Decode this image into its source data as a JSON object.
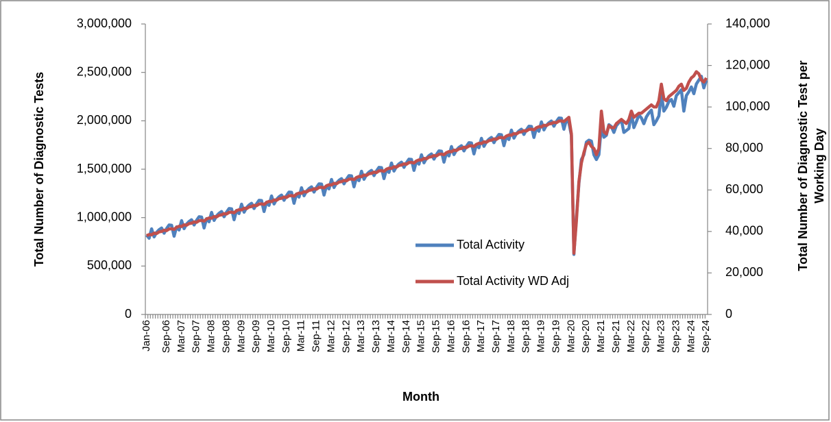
{
  "chart_data": {
    "type": "line",
    "x_label": "Month",
    "y_label": "Total Number of Diagnostic Tests",
    "y2_label": [
      "Total Number of Diagnostic Test per",
      "Working Day"
    ],
    "categories": [
      "Jan-06",
      null,
      null,
      null,
      null,
      null,
      null,
      null,
      "Sep-06",
      null,
      null,
      null,
      null,
      null,
      "Mar-07",
      null,
      null,
      null,
      null,
      null,
      "Sep-07",
      null,
      null,
      null,
      null,
      null,
      "Mar-08",
      null,
      null,
      null,
      null,
      null,
      "Sep-08",
      null,
      null,
      null,
      null,
      null,
      "Mar-09",
      null,
      null,
      null,
      null,
      null,
      "Sep-09",
      null,
      null,
      null,
      null,
      null,
      "Mar-10",
      null,
      null,
      null,
      null,
      null,
      "Sep-10",
      null,
      null,
      null,
      null,
      null,
      "Mar-11",
      null,
      null,
      null,
      null,
      null,
      "Sep-11",
      null,
      null,
      null,
      null,
      null,
      "Mar-12",
      null,
      null,
      null,
      null,
      null,
      "Sep-12",
      null,
      null,
      null,
      null,
      null,
      "Mar-13",
      null,
      null,
      null,
      null,
      null,
      "Sep-13",
      null,
      null,
      null,
      null,
      null,
      "Mar-14",
      null,
      null,
      null,
      null,
      null,
      "Sep-14",
      null,
      null,
      null,
      null,
      null,
      "Mar-15",
      null,
      null,
      null,
      null,
      null,
      "Sep-15",
      null,
      null,
      null,
      null,
      null,
      "Mar-16",
      null,
      null,
      null,
      null,
      null,
      "Sep-16",
      null,
      null,
      null,
      null,
      null,
      "Mar-17",
      null,
      null,
      null,
      null,
      null,
      "Sep-17",
      null,
      null,
      null,
      null,
      null,
      "Mar-18",
      null,
      null,
      null,
      null,
      null,
      "Sep-18",
      null,
      null,
      null,
      null,
      null,
      "Mar-19",
      null,
      null,
      null,
      null,
      null,
      "Sep-19",
      null,
      null,
      null,
      null,
      null,
      "Mar-20",
      null,
      null,
      null,
      null,
      null,
      "Sep-20",
      null,
      null,
      null,
      null,
      null,
      "Mar-21",
      null,
      null,
      null,
      null,
      null,
      "Sep-21",
      null,
      null,
      null,
      null,
      null,
      "Mar-22",
      null,
      null,
      null,
      null,
      null,
      "Sep-22",
      null,
      null,
      null,
      null,
      null,
      "Mar-23",
      null,
      null,
      null,
      null,
      null,
      "Sep-23",
      null,
      null,
      null,
      null,
      null,
      "Mar-24",
      null,
      null,
      null,
      null,
      null,
      "Sep-24"
    ],
    "series": [
      {
        "name": "Total Activity",
        "color": "#4f81bd",
        "values": [
          820000,
          787000,
          884000,
          801000,
          848000,
          875000,
          893000,
          839000,
          887000,
          924000,
          921000,
          808000,
          905000,
          872000,
          969000,
          886000,
          933000,
          960000,
          978000,
          924000,
          972000,
          1009000,
          1006000,
          893000,
          990000,
          957000,
          1054000,
          971000,
          1018000,
          1045000,
          1063000,
          1009000,
          1057000,
          1094000,
          1091000,
          978000,
          1075000,
          1042000,
          1139000,
          1056000,
          1103000,
          1130000,
          1148000,
          1094000,
          1142000,
          1179000,
          1176000,
          1063000,
          1160000,
          1127000,
          1224000,
          1141000,
          1188000,
          1215000,
          1233000,
          1179000,
          1227000,
          1264000,
          1261000,
          1148000,
          1245000,
          1212000,
          1309000,
          1226000,
          1273000,
          1300000,
          1318000,
          1264000,
          1312000,
          1349000,
          1346000,
          1233000,
          1330000,
          1297000,
          1394000,
          1311000,
          1358000,
          1385000,
          1403000,
          1349000,
          1397000,
          1434000,
          1431000,
          1318000,
          1415000,
          1382000,
          1479000,
          1396000,
          1443000,
          1470000,
          1488000,
          1434000,
          1482000,
          1519000,
          1516000,
          1403000,
          1500000,
          1467000,
          1564000,
          1481000,
          1528000,
          1555000,
          1573000,
          1519000,
          1567000,
          1604000,
          1601000,
          1488000,
          1585000,
          1552000,
          1649000,
          1566000,
          1613000,
          1640000,
          1658000,
          1604000,
          1652000,
          1689000,
          1686000,
          1573000,
          1670000,
          1637000,
          1734000,
          1651000,
          1698000,
          1725000,
          1743000,
          1689000,
          1737000,
          1774000,
          1771000,
          1658000,
          1755000,
          1722000,
          1819000,
          1736000,
          1783000,
          1810000,
          1828000,
          1774000,
          1822000,
          1859000,
          1856000,
          1743000,
          1840000,
          1807000,
          1904000,
          1821000,
          1868000,
          1895000,
          1913000,
          1859000,
          1907000,
          1944000,
          1941000,
          1828000,
          1925000,
          1892000,
          1989000,
          1906000,
          1953000,
          1980000,
          1998000,
          1944000,
          1992000,
          2029000,
          2026000,
          1913000,
          2010000,
          1980000,
          1850000,
          620000,
          1000000,
          1350000,
          1600000,
          1650000,
          1780000,
          1800000,
          1790000,
          1650000,
          1600000,
          1650000,
          1950000,
          1830000,
          1850000,
          1960000,
          1940000,
          1880000,
          1950000,
          1980000,
          2010000,
          1880000,
          1900000,
          1920000,
          2080000,
          1930000,
          1990000,
          2060000,
          2030000,
          1970000,
          2040000,
          2080000,
          2110000,
          1960000,
          2000000,
          2050000,
          2280000,
          2100000,
          2140000,
          2200000,
          2220000,
          2150000,
          2260000,
          2290000,
          2320000,
          2100000,
          2260000,
          2300000,
          2350000,
          2280000,
          2380000,
          2420000,
          2460000,
          2340000,
          2420000
        ]
      },
      {
        "name": "Total Activity WD Adj",
        "color": "#c0504d",
        "axis": "y2",
        "values": [
          38000,
          38500,
          38400,
          39200,
          39000,
          39800,
          40000,
          40600,
          40400,
          41200,
          41300,
          41000,
          42000,
          42500,
          42400,
          43200,
          43000,
          43800,
          44000,
          44600,
          44400,
          45200,
          45300,
          45000,
          46000,
          46500,
          46400,
          47200,
          47000,
          47800,
          48000,
          48600,
          48400,
          49200,
          49300,
          49000,
          50000,
          50500,
          50400,
          51200,
          51000,
          51800,
          52000,
          52600,
          52400,
          53200,
          53300,
          53000,
          54000,
          54500,
          54400,
          55200,
          55000,
          55800,
          56000,
          56600,
          56400,
          57200,
          57300,
          57000,
          58000,
          58500,
          58400,
          59200,
          59000,
          59800,
          60000,
          60600,
          60400,
          61200,
          61300,
          61000,
          62000,
          62500,
          62400,
          63200,
          63000,
          63800,
          64000,
          64600,
          64400,
          65200,
          65300,
          65000,
          66000,
          66500,
          66400,
          67200,
          67000,
          67800,
          68000,
          68600,
          68400,
          69200,
          69300,
          69000,
          70000,
          70500,
          70400,
          71200,
          71000,
          71800,
          72000,
          72600,
          72400,
          73200,
          73300,
          73000,
          74000,
          74500,
          74400,
          75200,
          75000,
          75800,
          76000,
          76600,
          76400,
          77200,
          77300,
          77000,
          78000,
          78500,
          78400,
          79200,
          79000,
          79800,
          80000,
          80600,
          80400,
          81200,
          81300,
          81000,
          82000,
          82500,
          82400,
          83200,
          83000,
          83800,
          84000,
          84600,
          84400,
          85200,
          85300,
          85000,
          86000,
          86500,
          86400,
          87200,
          87000,
          87800,
          88000,
          88600,
          88400,
          89200,
          89300,
          89000,
          90000,
          90500,
          90400,
          91200,
          91000,
          91800,
          92000,
          92600,
          92400,
          93200,
          93300,
          93000,
          94000,
          95000,
          87000,
          29500,
          45000,
          64000,
          73000,
          78000,
          82000,
          83000,
          81000,
          80000,
          77000,
          80000,
          98000,
          88000,
          87000,
          91000,
          90000,
          90000,
          92000,
          93000,
          94000,
          93000,
          92000,
          94000,
          98000,
          95000,
          96000,
          97000,
          97000,
          98000,
          99000,
          100000,
          101000,
          100000,
          100000,
          103000,
          111000,
          104000,
          103000,
          105000,
          106000,
          107000,
          108000,
          110000,
          111000,
          108000,
          109000,
          112000,
          114000,
          115000,
          117000,
          116000,
          113000,
          112000,
          114000
        ]
      }
    ],
    "ylim": [
      0,
      3000000
    ],
    "yticks": [
      0,
      {
        "value": 500000,
        "label": "500,000"
      },
      {
        "value": 1000000,
        "label": "1,000,000"
      },
      {
        "value": 1500000,
        "label": "1,500,000"
      },
      {
        "value": 2000000,
        "label": "2,000,000"
      },
      {
        "value": 2500000,
        "label": "2,500,000"
      },
      {
        "value": 3000000,
        "label": "3,000,000"
      }
    ],
    "y2lim": [
      0,
      140000
    ],
    "y2ticks": [
      0,
      {
        "value": 20000,
        "label": "20,000"
      },
      {
        "value": 40000,
        "label": "40,000"
      },
      {
        "value": 60000,
        "label": "60,000"
      },
      {
        "value": 80000,
        "label": "80,000"
      },
      {
        "value": 100000,
        "label": "100,000"
      },
      {
        "value": 120000,
        "label": "120,000"
      },
      {
        "value": 140000,
        "label": "140,000"
      }
    ],
    "grid": false
  }
}
